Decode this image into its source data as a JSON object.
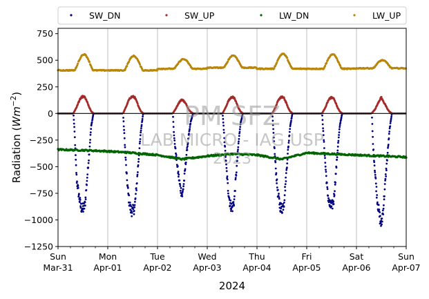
{
  "chart_data": {
    "type": "scatter",
    "ylabel": "Radiation",
    "ylabel_unit_base": "Wm",
    "ylabel_unit_exp": "−2",
    "xlabel": "2024",
    "ylim": [
      -1250,
      800
    ],
    "yticks": [
      {
        "value": 750,
        "label": "750"
      },
      {
        "value": 500,
        "label": "500"
      },
      {
        "value": 250,
        "label": "250"
      },
      {
        "value": 0,
        "label": "0"
      },
      {
        "value": -250,
        "label": "−250"
      },
      {
        "value": -500,
        "label": "−500"
      },
      {
        "value": -750,
        "label": "−750"
      },
      {
        "value": -1000,
        "label": "−1000"
      },
      {
        "value": -1250,
        "label": "−1250"
      }
    ],
    "xlim": [
      "2024-03-31",
      "2024-04-07"
    ],
    "xticks": [
      {
        "day": 0,
        "line1": "Sun",
        "line2": "Mar-31"
      },
      {
        "day": 1,
        "line1": "Mon",
        "line2": "Apr-01"
      },
      {
        "day": 2,
        "line1": "Tue",
        "line2": "Apr-02"
      },
      {
        "day": 3,
        "line1": "Wed",
        "line2": "Apr-03"
      },
      {
        "day": 4,
        "line1": "Thu",
        "line2": "Apr-04"
      },
      {
        "day": 5,
        "line1": "Fri",
        "line2": "Apr-05"
      },
      {
        "day": 6,
        "line1": "Sat",
        "line2": "Apr-06"
      },
      {
        "day": 7,
        "line1": "Sun",
        "line2": "Apr-07"
      }
    ],
    "grid": "x-major",
    "zero_line": 0,
    "legend_position": "top, above plot",
    "series": [
      {
        "name": "SW_DN",
        "color": "#000080",
        "daily_min": [
          -900,
          -920,
          -770,
          -890,
          -900,
          -880,
          -1050
        ],
        "samples": [
          {
            "date": "2024-03-31",
            "points": [
              [
                7.5,
                -20
              ],
              [
                8,
                -180
              ],
              [
                8.5,
                -420
              ],
              [
                9,
                -620
              ],
              [
                10,
                -760
              ],
              [
                11,
                -880
              ],
              [
                12,
                -900
              ],
              [
                13,
                -860
              ],
              [
                14,
                -620
              ],
              [
                15,
                -380
              ],
              [
                16,
                -120
              ],
              [
                17,
                -10
              ]
            ]
          },
          {
            "date": "2024-04-01",
            "points": [
              [
                7.5,
                -40
              ],
              [
                8,
                -200
              ],
              [
                9,
                -560
              ],
              [
                10,
                -780
              ],
              [
                11,
                -900
              ],
              [
                12,
                -920
              ],
              [
                13,
                -880
              ],
              [
                14,
                -660
              ],
              [
                15,
                -400
              ],
              [
                16,
                -160
              ],
              [
                17,
                -10
              ]
            ]
          },
          {
            "date": "2024-04-02",
            "points": [
              [
                7.5,
                -30
              ],
              [
                8,
                -220
              ],
              [
                9,
                -400
              ],
              [
                10,
                -560
              ],
              [
                11,
                -700
              ],
              [
                12,
                -770
              ],
              [
                13,
                -600
              ],
              [
                14,
                -380
              ],
              [
                15,
                -220
              ],
              [
                16,
                -80
              ],
              [
                17,
                -10
              ]
            ]
          },
          {
            "date": "2024-04-03",
            "points": [
              [
                7.5,
                -20
              ],
              [
                8,
                -160
              ],
              [
                9,
                -450
              ],
              [
                10,
                -700
              ],
              [
                11,
                -850
              ],
              [
                12,
                -890
              ],
              [
                13,
                -820
              ],
              [
                14,
                -560
              ],
              [
                15,
                -300
              ],
              [
                16,
                -100
              ],
              [
                17,
                -10
              ]
            ]
          },
          {
            "date": "2024-04-04",
            "points": [
              [
                7.5,
                -30
              ],
              [
                8,
                -200
              ],
              [
                9,
                -500
              ],
              [
                10,
                -740
              ],
              [
                11,
                -860
              ],
              [
                12,
                -900
              ],
              [
                13,
                -840
              ],
              [
                14,
                -600
              ],
              [
                15,
                -340
              ],
              [
                16,
                -120
              ],
              [
                17,
                -10
              ]
            ]
          },
          {
            "date": "2024-04-05",
            "points": [
              [
                7.5,
                -20
              ],
              [
                8,
                -180
              ],
              [
                9,
                -480
              ],
              [
                10,
                -740
              ],
              [
                11,
                -860
              ],
              [
                12,
                -880
              ],
              [
                13,
                -820
              ],
              [
                14,
                -580
              ],
              [
                15,
                -320
              ],
              [
                16,
                -110
              ],
              [
                17,
                -10
              ]
            ]
          },
          {
            "date": "2024-04-06",
            "points": [
              [
                7.5,
                -40
              ],
              [
                8,
                -300
              ],
              [
                9,
                -560
              ],
              [
                10,
                -800
              ],
              [
                11,
                -950
              ],
              [
                12,
                -1050
              ],
              [
                13,
                -880
              ],
              [
                14,
                -620
              ],
              [
                15,
                -380
              ],
              [
                16,
                -150
              ],
              [
                17,
                -10
              ]
            ]
          }
        ]
      },
      {
        "name": "SW_UP",
        "color": "#a52a2a",
        "daily_max": [
          160,
          160,
          130,
          155,
          155,
          150,
          150
        ],
        "samples": [
          {
            "date": "2024-03-31",
            "points": [
              [
                7.5,
                5
              ],
              [
                9,
                60
              ],
              [
                10,
                110
              ],
              [
                11,
                145
              ],
              [
                12,
                160
              ],
              [
                13,
                150
              ],
              [
                14,
                110
              ],
              [
                15,
                60
              ],
              [
                16,
                20
              ],
              [
                17,
                3
              ]
            ]
          },
          {
            "date": "2024-04-01",
            "points": [
              [
                7.5,
                5
              ],
              [
                9,
                70
              ],
              [
                10,
                120
              ],
              [
                11,
                150
              ],
              [
                12,
                160
              ],
              [
                13,
                150
              ],
              [
                14,
                110
              ],
              [
                15,
                60
              ],
              [
                16,
                20
              ],
              [
                17,
                3
              ]
            ]
          },
          {
            "date": "2024-04-02",
            "points": [
              [
                7.5,
                5
              ],
              [
                9,
                50
              ],
              [
                10,
                90
              ],
              [
                11,
                120
              ],
              [
                12,
                130
              ],
              [
                13,
                110
              ],
              [
                14,
                80
              ],
              [
                15,
                40
              ],
              [
                16,
                15
              ],
              [
                17,
                3
              ]
            ]
          },
          {
            "date": "2024-04-03",
            "points": [
              [
                7.5,
                5
              ],
              [
                9,
                60
              ],
              [
                10,
                110
              ],
              [
                11,
                140
              ],
              [
                12,
                155
              ],
              [
                13,
                145
              ],
              [
                14,
                105
              ],
              [
                15,
                55
              ],
              [
                16,
                20
              ],
              [
                17,
                3
              ]
            ]
          },
          {
            "date": "2024-04-04",
            "points": [
              [
                7.5,
                5
              ],
              [
                9,
                60
              ],
              [
                10,
                110
              ],
              [
                11,
                145
              ],
              [
                12,
                155
              ],
              [
                13,
                145
              ],
              [
                14,
                105
              ],
              [
                15,
                55
              ],
              [
                16,
                20
              ],
              [
                17,
                3
              ]
            ]
          },
          {
            "date": "2024-04-05",
            "points": [
              [
                7.5,
                5
              ],
              [
                9,
                55
              ],
              [
                10,
                105
              ],
              [
                11,
                140
              ],
              [
                12,
                150
              ],
              [
                13,
                140
              ],
              [
                14,
                100
              ],
              [
                15,
                50
              ],
              [
                16,
                18
              ],
              [
                17,
                3
              ]
            ]
          },
          {
            "date": "2024-04-06",
            "points": [
              [
                7.5,
                5
              ],
              [
                9,
                40
              ],
              [
                10,
                80
              ],
              [
                11,
                120
              ],
              [
                12,
                150
              ],
              [
                13,
                110
              ],
              [
                14,
                80
              ],
              [
                15,
                40
              ],
              [
                16,
                15
              ],
              [
                17,
                3
              ]
            ]
          }
        ]
      },
      {
        "name": "LW_DN",
        "color": "#006400",
        "points": [
          [
            "2024-03-31 00:00",
            -340
          ],
          [
            "2024-03-31 12:00",
            -345
          ],
          [
            "2024-04-01 00:00",
            -355
          ],
          [
            "2024-04-01 12:00",
            -370
          ],
          [
            "2024-04-02 00:00",
            -390
          ],
          [
            "2024-04-02 12:00",
            -430
          ],
          [
            "2024-04-03 00:00",
            -400
          ],
          [
            "2024-04-03 12:00",
            -380
          ],
          [
            "2024-04-04 00:00",
            -390
          ],
          [
            "2024-04-04 12:00",
            -430
          ],
          [
            "2024-04-05 00:00",
            -370
          ],
          [
            "2024-04-05 12:00",
            -380
          ],
          [
            "2024-04-06 00:00",
            -390
          ],
          [
            "2024-04-06 12:00",
            -400
          ],
          [
            "2024-04-07 00:00",
            -410
          ]
        ]
      },
      {
        "name": "LW_UP",
        "color": "#b8860b",
        "night_level": [
          405,
          405,
          420,
          430,
          420,
          420,
          425
        ],
        "daily_max": [
          555,
          540,
          510,
          545,
          560,
          555,
          500
        ]
      }
    ]
  },
  "watermark": {
    "line1": "PM SFZ",
    "line2": "LAB MICRO - IAG USP",
    "line3": "2023"
  }
}
